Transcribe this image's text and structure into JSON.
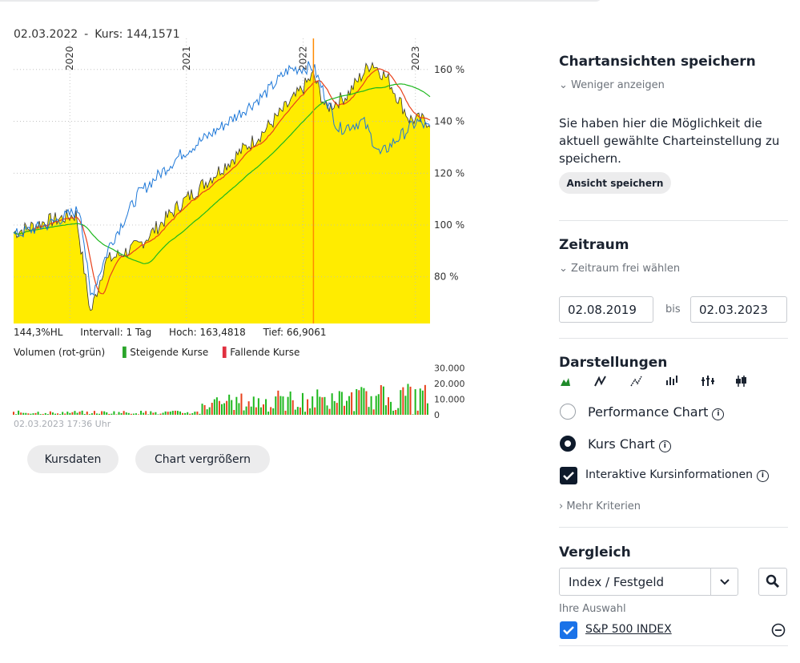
{
  "header": {
    "date": "02.03.2022",
    "separator": "-",
    "kurs_label": "Kurs: 144,1571"
  },
  "chart_data": {
    "type": "line",
    "x_ticks": [
      "2020",
      "2021",
      "2022",
      "2023"
    ],
    "y_ticks": [
      "160 %",
      "140 %",
      "120 %",
      "100 %",
      "80 %"
    ],
    "ylim": [
      62,
      172
    ],
    "series": [],
    "crosshair_date": "02.03.2022",
    "colors": {
      "area": "#ffec00",
      "blue": "#1e78d8",
      "red": "#e8411b",
      "green": "#1eb81e",
      "crosshair": "#ff8a00"
    },
    "volume": {
      "y_ticks": [
        "30.000",
        "20.000",
        "10.000",
        "0"
      ],
      "ylim": [
        0,
        35000
      ]
    }
  },
  "stats": {
    "hl": "144,3%HL",
    "interval": "Intervall: 1 Tag",
    "hoch": "Hoch: 163,4818",
    "tief": "Tief: 66,9061"
  },
  "volume_legend": {
    "title": "Volumen (rot-grün)",
    "rising": "Steigende Kurse",
    "falling": "Fallende Kurse"
  },
  "timestamp": "02.03.2023 17:36 Uhr",
  "buttons": {
    "kursdaten": "Kursdaten",
    "vergroessern": "Chart vergrößern"
  },
  "sidebar": {
    "save": {
      "title": "Chartansichten speichern",
      "toggle": "Weniger anzeigen",
      "text": "Sie haben hier die Möglichkeit die aktuell gewählte Charteinstellung zu speichern.",
      "button": "Ansicht speichern"
    },
    "zeitraum": {
      "title": "Zeitraum",
      "toggle": "Zeitraum frei wählen",
      "from": "02.08.2019",
      "bis": "bis",
      "to": "02.03.2023"
    },
    "darstellungen": {
      "title": "Darstellungen",
      "options": [
        {
          "label": "Performance Chart",
          "selected": false
        },
        {
          "label": "Kurs Chart",
          "selected": true
        }
      ],
      "interactive": "Interaktive Kursinformationen",
      "mehr": "Mehr Kriterien"
    },
    "vergleich": {
      "title": "Vergleich",
      "select_value": "Index / Festgeld",
      "auswahl_label": "Ihre Auswahl",
      "selected_item": "S&P 500 INDEX"
    }
  }
}
